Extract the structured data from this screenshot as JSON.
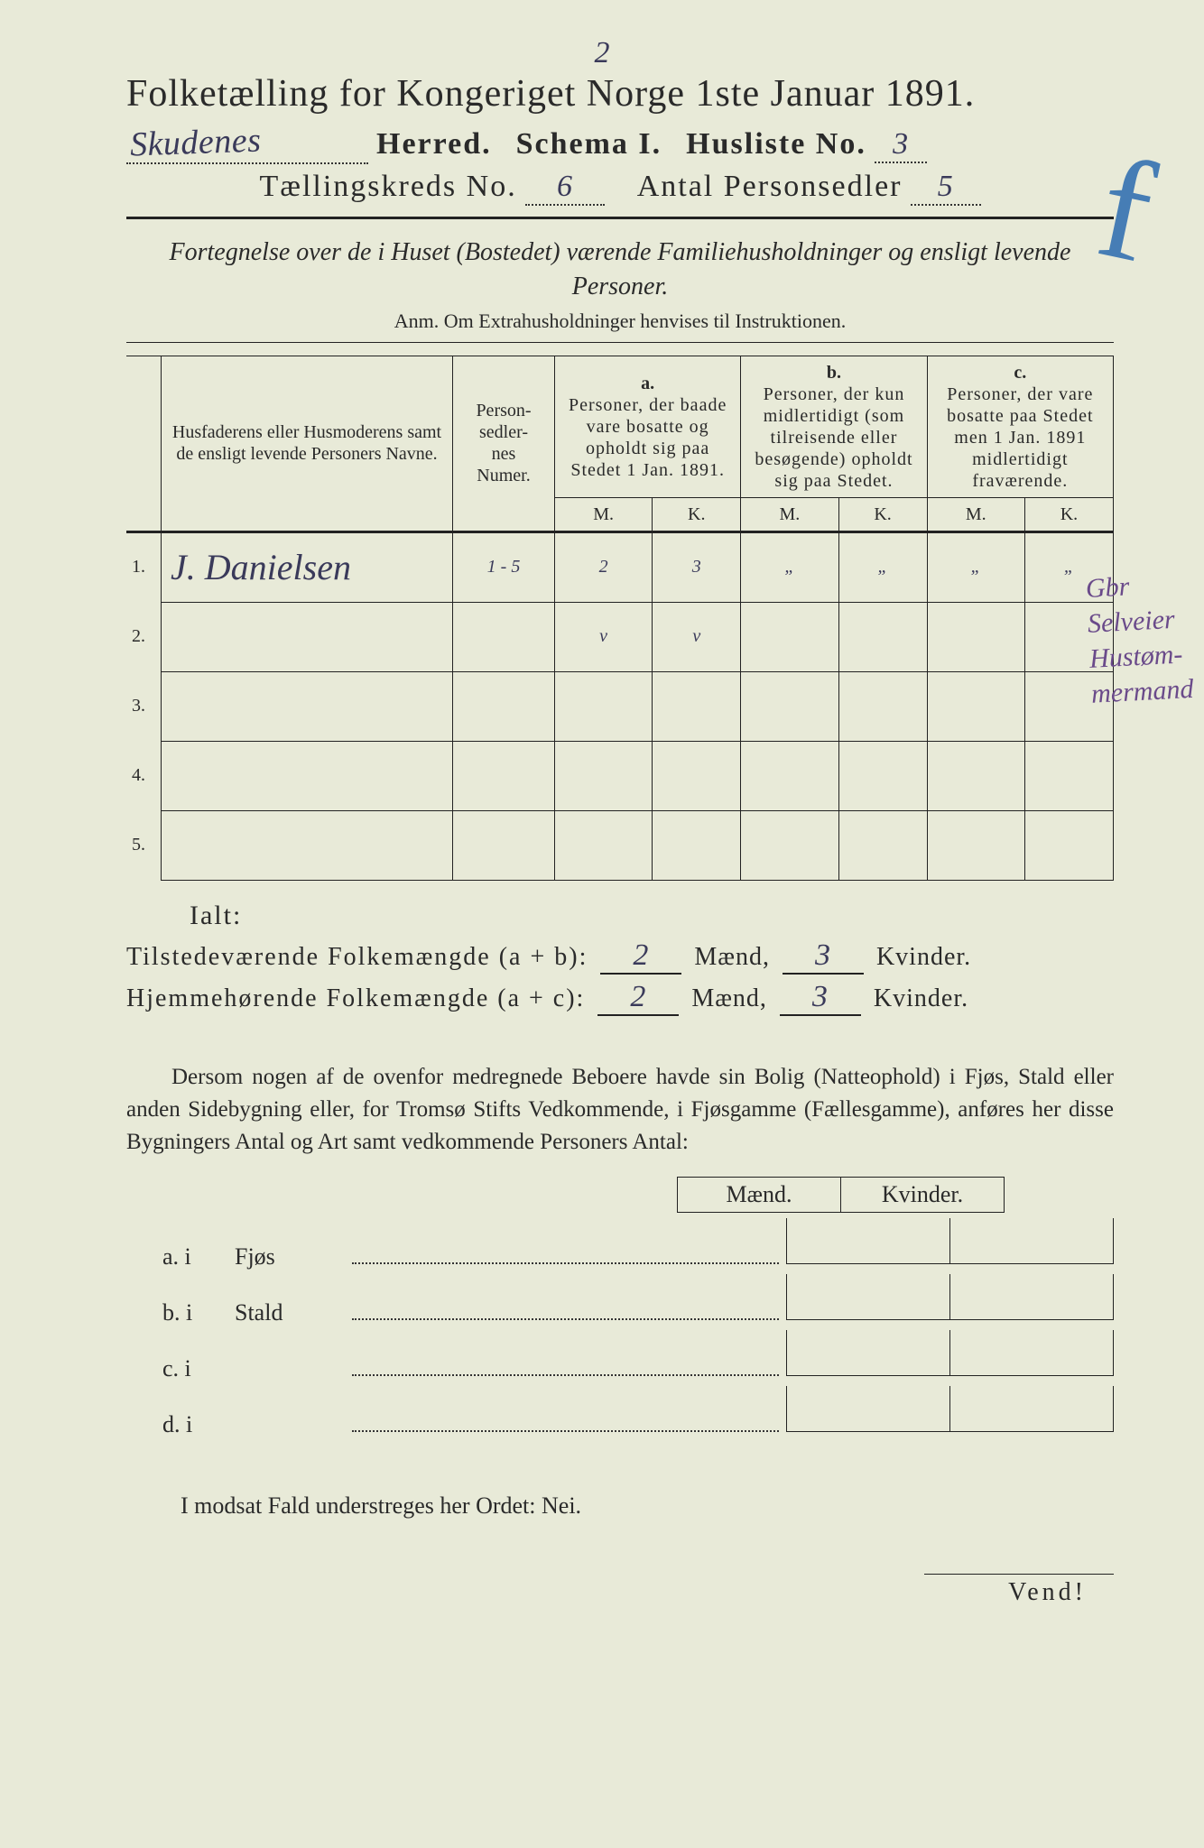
{
  "page_number_top": "2",
  "title": "Folketælling for Kongeriget Norge 1ste Januar 1891.",
  "herred_value": "Skudenes",
  "herred_label": "Herred.",
  "schema_label": "Schema I.",
  "husliste_label": "Husliste No.",
  "husliste_value": "3",
  "kreds_label": "Tællingskreds No.",
  "kreds_value": "6",
  "antal_label": "Antal Personsedler",
  "antal_value": "5",
  "subtitle": "Fortegnelse over de i Huset (Bostedet) værende Familiehusholdninger og ensligt levende Personer.",
  "anm": "Anm. Om Extrahusholdninger henvises til Instruktionen.",
  "col_names": "Husfaderens eller Husmoderens samt de ensligt levende Personers Navne.",
  "col_numer": "Person-\nsedler-\nnes\nNumer.",
  "col_a_top": "a.",
  "col_a": "Personer, der baade vare bosatte og opholdt sig paa Stedet 1 Jan. 1891.",
  "col_b_top": "b.",
  "col_b": "Personer, der kun midlertidigt (som tilreisende eller besøgende) opholdt sig paa Stedet.",
  "col_c_top": "c.",
  "col_c": "Personer, der vare bosatte paa Stedet men 1 Jan. 1891 midlertidigt fraværende.",
  "mk_m": "M.",
  "mk_k": "K.",
  "rows": [
    {
      "n": "1.",
      "name": "J. Danielsen",
      "numer": "1 - 5",
      "am": "2",
      "ak": "3",
      "bm": "„",
      "bk": "„",
      "cm": "„",
      "ck": "„"
    },
    {
      "n": "2.",
      "name": "",
      "numer": "",
      "am": "v",
      "ak": "v",
      "bm": "",
      "bk": "",
      "cm": "",
      "ck": ""
    },
    {
      "n": "3.",
      "name": "",
      "numer": "",
      "am": "",
      "ak": "",
      "bm": "",
      "bk": "",
      "cm": "",
      "ck": ""
    },
    {
      "n": "4.",
      "name": "",
      "numer": "",
      "am": "",
      "ak": "",
      "bm": "",
      "bk": "",
      "cm": "",
      "ck": ""
    },
    {
      "n": "5.",
      "name": "",
      "numer": "",
      "am": "",
      "ak": "",
      "bm": "",
      "bk": "",
      "cm": "",
      "ck": ""
    }
  ],
  "ialt": "Ialt:",
  "sum1_label_a": "Tilstedeværende Folkemængde (a + b):",
  "sum1_m": "2",
  "sum1_k": "3",
  "sum2_label_a": "Hjemmehørende Folkemængde (a + c):",
  "sum2_m": "2",
  "sum2_k": "3",
  "maend": "Mænd,",
  "kvinder": "Kvinder.",
  "para": "Dersom nogen af de ovenfor medregnede Beboere havde sin Bolig (Natteophold) i Fjøs, Stald eller anden Sidebygning eller, for Tromsø Stifts Vedkommende, i Fjøsgamme (Fællesgamme), anføres her disse Bygningers Antal og Art samt vedkommende Personers Antal:",
  "mk_maend": "Mænd.",
  "mk_kvinder": "Kvinder.",
  "out_rows": [
    {
      "l": "a.  i",
      "t": "Fjøs"
    },
    {
      "l": "b.  i",
      "t": "Stald"
    },
    {
      "l": "c.  i",
      "t": ""
    },
    {
      "l": "d.  i",
      "t": ""
    }
  ],
  "nei_line": "I modsat Fald understreges her Ordet: Nei.",
  "vend": "Vend!",
  "blue_mark": "f",
  "margin_notes": "Gbr\nSelveier\nHustøm-\nmermand",
  "colors": {
    "paper": "#e8ead8",
    "ink": "#2a2a2a",
    "handwriting": "#3a3a5a",
    "purple_note": "#6a4a8a",
    "blue_pencil": "#2a6bb0"
  }
}
